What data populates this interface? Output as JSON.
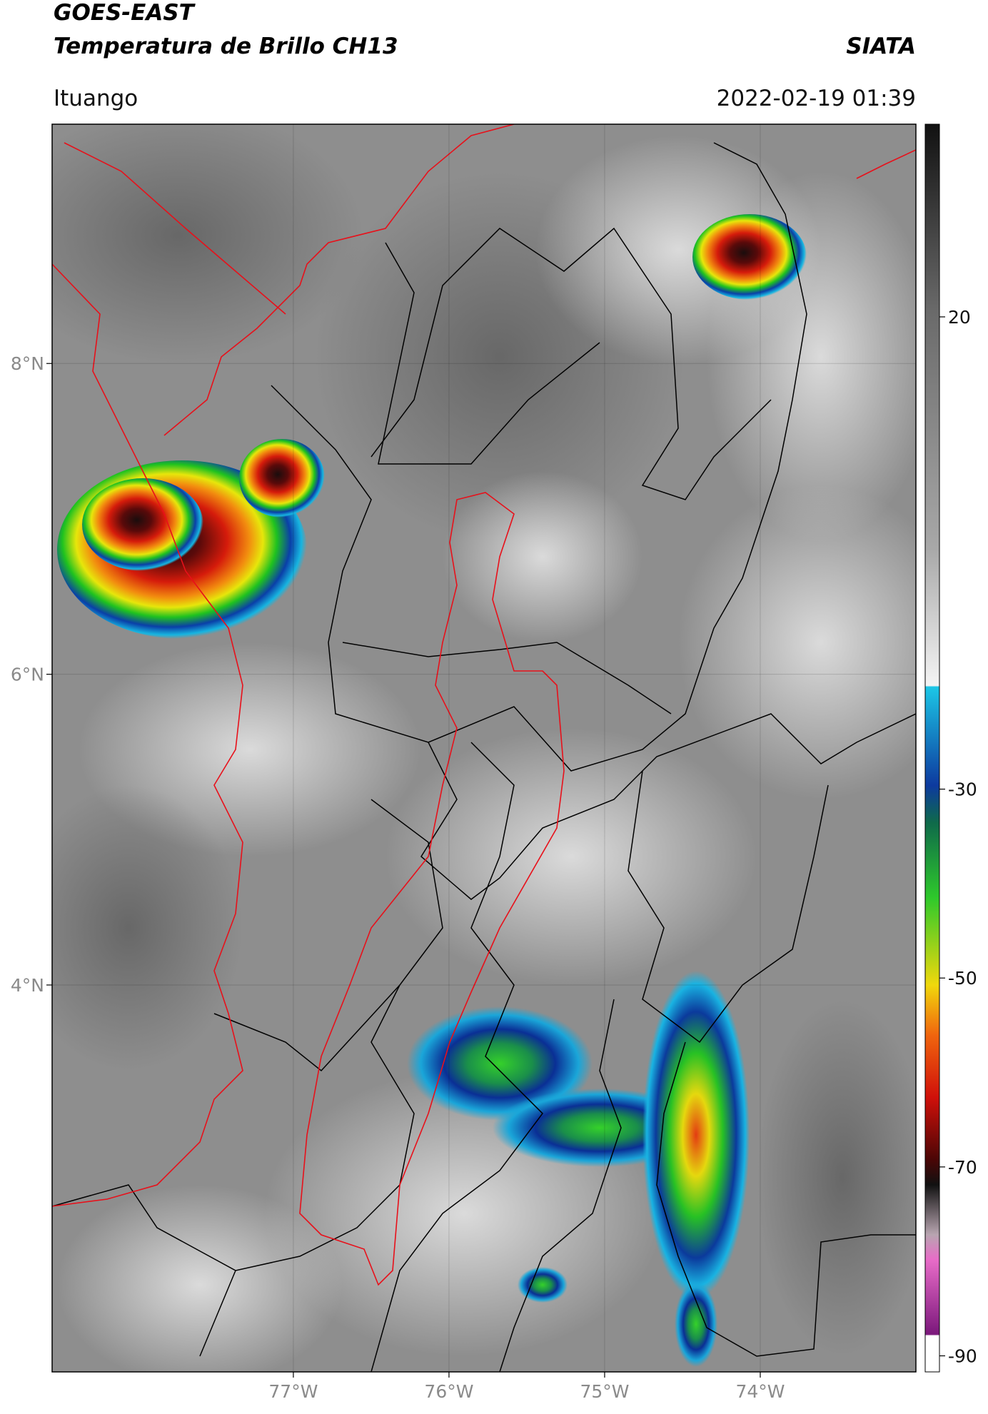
{
  "header": {
    "title": "GOES-EAST",
    "subtitle": "Temperatura de Brillo CH13",
    "source": "SIATA",
    "location": "Ituango",
    "datetime": "2022-02-19 01:39"
  },
  "map": {
    "latlim": [
      1.51,
      9.54
    ],
    "lonlim": [
      -78.55,
      -73.0
    ],
    "latticks": [
      {
        "value": 8,
        "label": "8°N"
      },
      {
        "value": 6,
        "label": "6°N"
      },
      {
        "value": 4,
        "label": "4°N"
      }
    ],
    "lonticks": [
      {
        "value": -77,
        "label": "77°W"
      },
      {
        "value": -76,
        "label": "76°W"
      },
      {
        "value": -75,
        "label": "75°W"
      },
      {
        "value": -74,
        "label": "74°W"
      }
    ],
    "grid": true
  },
  "colorbar": {
    "lim": [
      -91.7,
      40.4
    ],
    "ticks": [
      20,
      -30,
      -50,
      -70,
      -90
    ]
  }
}
